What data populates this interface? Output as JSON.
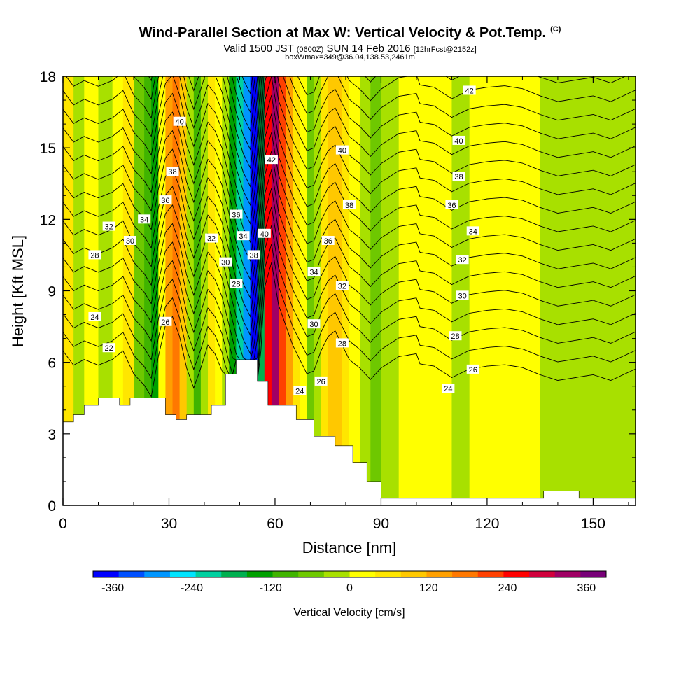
{
  "title": {
    "main": "Wind-Parallel Section at Max W: Vertical Velocity & Pot.Temp.",
    "mark": "(C)",
    "valid_prefix": "Valid 1500 JST",
    "valid_utc": "(0600Z)",
    "valid_date": "SUN 14 Feb 2016",
    "forecast": "[12hrFcst@2152z]",
    "box_info": "boxWmax=349@36.04,138.53,2461m"
  },
  "chart_data": {
    "type": "heatmap",
    "xlabel": "Distance [nm]",
    "ylabel": "Height [Kft MSL]",
    "xlim": [
      0,
      162
    ],
    "ylim": [
      0,
      18
    ],
    "x_ticks": [
      "0",
      "30",
      "60",
      "90",
      "120",
      "150"
    ],
    "x_tick_values": [
      0,
      30,
      60,
      90,
      120,
      150
    ],
    "y_ticks": [
      "0",
      "3",
      "6",
      "9",
      "12",
      "15",
      "18"
    ],
    "y_tick_values": [
      0,
      3,
      6,
      9,
      12,
      15,
      18
    ],
    "colorbar": {
      "label": "Vertical Velocity [cm/s]",
      "tick_labels": [
        "-360",
        "-240",
        "-120",
        "0",
        "120",
        "240",
        "360"
      ],
      "tick_values": [
        -360,
        -240,
        -120,
        0,
        120,
        240,
        360
      ],
      "range": [
        -390,
        390
      ],
      "colors": [
        "#0000ff",
        "#0050ff",
        "#0096ff",
        "#00e4ff",
        "#00d0a0",
        "#00b050",
        "#00a000",
        "#40b400",
        "#6ec800",
        "#a8e000",
        "#ffff00",
        "#ffe600",
        "#ffc800",
        "#ffa000",
        "#ff7800",
        "#ff4000",
        "#ff0000",
        "#d0003c",
        "#a00064",
        "#780078"
      ]
    },
    "columns": [
      {
        "x": 0,
        "w": 40
      },
      {
        "x": 3,
        "w": -10
      },
      {
        "x": 6,
        "w": 10
      },
      {
        "x": 10,
        "w": -10
      },
      {
        "x": 14,
        "w": 10
      },
      {
        "x": 17,
        "w": 40
      },
      {
        "x": 20,
        "w": -40
      },
      {
        "x": 23,
        "w": -80
      },
      {
        "x": 25,
        "w": -120
      },
      {
        "x": 27,
        "w": 20
      },
      {
        "x": 29,
        "w": 130
      },
      {
        "x": 31,
        "w": 160
      },
      {
        "x": 33,
        "w": 90
      },
      {
        "x": 35,
        "w": -20
      },
      {
        "x": 37,
        "w": -90
      },
      {
        "x": 39,
        "w": -20
      },
      {
        "x": 41,
        "w": 60
      },
      {
        "x": 43,
        "w": 30
      },
      {
        "x": 45,
        "w": -30
      },
      {
        "x": 47,
        "w": -130
      },
      {
        "x": 49,
        "w": -230
      },
      {
        "x": 51,
        "w": -310
      },
      {
        "x": 53,
        "w": -360
      },
      {
        "x": 55,
        "w": -180
      },
      {
        "x": 57,
        "w": 260
      },
      {
        "x": 59,
        "w": 349
      },
      {
        "x": 61,
        "w": 200
      },
      {
        "x": 63,
        "w": 130
      },
      {
        "x": 65,
        "w": 60
      },
      {
        "x": 67,
        "w": 10
      },
      {
        "x": 69,
        "w": -40
      },
      {
        "x": 71,
        "w": -30
      },
      {
        "x": 73,
        "w": 40
      },
      {
        "x": 75,
        "w": 90
      },
      {
        "x": 77,
        "w": 110
      },
      {
        "x": 79,
        "w": 60
      },
      {
        "x": 81,
        "w": 10
      },
      {
        "x": 84,
        "w": -20
      },
      {
        "x": 87,
        "w": -60
      },
      {
        "x": 90,
        "w": -20
      },
      {
        "x": 95,
        "w": 20
      },
      {
        "x": 100,
        "w": 30
      },
      {
        "x": 105,
        "w": 20
      },
      {
        "x": 110,
        "w": -20
      },
      {
        "x": 115,
        "w": 10
      },
      {
        "x": 120,
        "w": 20
      },
      {
        "x": 125,
        "w": 25
      },
      {
        "x": 130,
        "w": 15
      },
      {
        "x": 135,
        "w": -10
      },
      {
        "x": 140,
        "w": -30
      },
      {
        "x": 145,
        "w": -20
      },
      {
        "x": 150,
        "w": -10
      },
      {
        "x": 155,
        "w": -30
      },
      {
        "x": 162,
        "w": 10
      }
    ],
    "terrain": [
      {
        "x": 0,
        "h": 3.5
      },
      {
        "x": 3,
        "h": 3.8
      },
      {
        "x": 6,
        "h": 4.2
      },
      {
        "x": 10,
        "h": 4.5
      },
      {
        "x": 16,
        "h": 4.2
      },
      {
        "x": 19,
        "h": 4.5
      },
      {
        "x": 29,
        "h": 3.8
      },
      {
        "x": 32,
        "h": 3.6
      },
      {
        "x": 35,
        "h": 3.8
      },
      {
        "x": 42,
        "h": 4.2
      },
      {
        "x": 46,
        "h": 5.5
      },
      {
        "x": 49,
        "h": 6.1
      },
      {
        "x": 55,
        "h": 5.2
      },
      {
        "x": 58,
        "h": 4.2
      },
      {
        "x": 66,
        "h": 3.6
      },
      {
        "x": 71,
        "h": 2.9
      },
      {
        "x": 77,
        "h": 2.5
      },
      {
        "x": 82,
        "h": 1.8
      },
      {
        "x": 86,
        "h": 1.0
      },
      {
        "x": 90,
        "h": 0.3
      },
      {
        "x": 136,
        "h": 0.6
      },
      {
        "x": 146,
        "h": 0.3
      },
      {
        "x": 162,
        "h": 0.3
      }
    ],
    "theta_levels": [
      22,
      23,
      24,
      25,
      26,
      27,
      28,
      29,
      30,
      31,
      32,
      33,
      34,
      35,
      36,
      37,
      38,
      39,
      40,
      41,
      42,
      43
    ],
    "theta_labels": [
      {
        "x": 13,
        "y": 6.6,
        "text": "22"
      },
      {
        "x": 9,
        "y": 7.9,
        "text": "24"
      },
      {
        "x": 9,
        "y": 10.5,
        "text": "28"
      },
      {
        "x": 19,
        "y": 11.1,
        "text": "30"
      },
      {
        "x": 13,
        "y": 11.7,
        "text": "32"
      },
      {
        "x": 23,
        "y": 12.0,
        "text": "34"
      },
      {
        "x": 29,
        "y": 12.8,
        "text": "36"
      },
      {
        "x": 31,
        "y": 14.0,
        "text": "38"
      },
      {
        "x": 33,
        "y": 16.1,
        "text": "40"
      },
      {
        "x": 29,
        "y": 7.7,
        "text": "26"
      },
      {
        "x": 42,
        "y": 11.2,
        "text": "32"
      },
      {
        "x": 46,
        "y": 10.2,
        "text": "30"
      },
      {
        "x": 49,
        "y": 9.3,
        "text": "28"
      },
      {
        "x": 49,
        "y": 12.2,
        "text": "36"
      },
      {
        "x": 51,
        "y": 11.3,
        "text": "34"
      },
      {
        "x": 54,
        "y": 10.5,
        "text": "38"
      },
      {
        "x": 57,
        "y": 11.4,
        "text": "40"
      },
      {
        "x": 59,
        "y": 14.5,
        "text": "42"
      },
      {
        "x": 67,
        "y": 4.8,
        "text": "24"
      },
      {
        "x": 73,
        "y": 5.2,
        "text": "26"
      },
      {
        "x": 71,
        "y": 7.6,
        "text": "30"
      },
      {
        "x": 79,
        "y": 6.8,
        "text": "28"
      },
      {
        "x": 79,
        "y": 9.2,
        "text": "32"
      },
      {
        "x": 71,
        "y": 9.8,
        "text": "34"
      },
      {
        "x": 75,
        "y": 11.1,
        "text": "36"
      },
      {
        "x": 81,
        "y": 12.6,
        "text": "38"
      },
      {
        "x": 79,
        "y": 14.9,
        "text": "40"
      },
      {
        "x": 115,
        "y": 17.4,
        "text": "42"
      },
      {
        "x": 112,
        "y": 15.3,
        "text": "40"
      },
      {
        "x": 112,
        "y": 13.8,
        "text": "38"
      },
      {
        "x": 110,
        "y": 12.6,
        "text": "36"
      },
      {
        "x": 116,
        "y": 11.5,
        "text": "34"
      },
      {
        "x": 113,
        "y": 10.3,
        "text": "32"
      },
      {
        "x": 113,
        "y": 8.8,
        "text": "30"
      },
      {
        "x": 111,
        "y": 7.1,
        "text": "28"
      },
      {
        "x": 116,
        "y": 5.7,
        "text": "26"
      },
      {
        "x": 109,
        "y": 4.9,
        "text": "24"
      }
    ]
  }
}
